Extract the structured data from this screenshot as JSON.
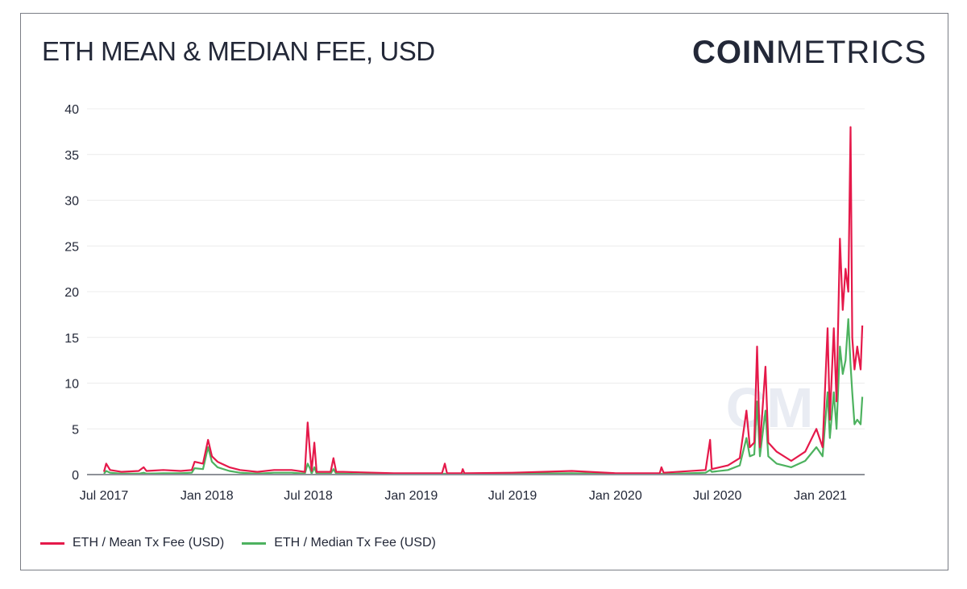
{
  "title": "ETH MEAN & MEDIAN FEE, USD",
  "logo": {
    "bold": "COIN",
    "light": "METRICS"
  },
  "chart_data": {
    "type": "line",
    "title": "ETH MEAN & MEDIAN FEE, USD",
    "xlabel": "",
    "ylabel": "",
    "ylim": [
      0,
      40
    ],
    "yticks": [
      "0",
      "5",
      "10",
      "15",
      "20",
      "25",
      "30",
      "35",
      "40"
    ],
    "xticks": [
      {
        "date": "2017-07-01",
        "label": "Jul 2017"
      },
      {
        "date": "2018-01-01",
        "label": "Jan 2018"
      },
      {
        "date": "2018-07-01",
        "label": "Jul 2018"
      },
      {
        "date": "2019-01-01",
        "label": "Jan 2019"
      },
      {
        "date": "2019-07-01",
        "label": "Jul 2019"
      },
      {
        "date": "2020-01-01",
        "label": "Jan 2020"
      },
      {
        "date": "2020-07-01",
        "label": "Jul 2020"
      },
      {
        "date": "2021-01-01",
        "label": "Jan 2021"
      }
    ],
    "xlim": [
      "2017-07-01",
      "2021-03-17"
    ],
    "grid": true,
    "legend_position": "bottom-left",
    "x": [
      "2017-07-01",
      "2017-07-05",
      "2017-07-12",
      "2017-08-01",
      "2017-09-01",
      "2017-09-10",
      "2017-09-15",
      "2017-10-15",
      "2017-11-15",
      "2017-12-05",
      "2017-12-10",
      "2017-12-25",
      "2018-01-03",
      "2018-01-10",
      "2018-01-20",
      "2018-02-10",
      "2018-03-01",
      "2018-04-01",
      "2018-05-01",
      "2018-06-01",
      "2018-06-25",
      "2018-06-30",
      "2018-07-04",
      "2018-07-07",
      "2018-07-12",
      "2018-07-16",
      "2018-08-10",
      "2018-08-15",
      "2018-08-20",
      "2018-09-01",
      "2018-10-01",
      "2018-12-01",
      "2019-02-25",
      "2019-03-02",
      "2019-03-06",
      "2019-04-01",
      "2019-04-03",
      "2019-04-06",
      "2019-07-01",
      "2019-10-15",
      "2020-01-01",
      "2020-03-20",
      "2020-03-23",
      "2020-03-27",
      "2020-06-10",
      "2020-06-18",
      "2020-06-21",
      "2020-07-20",
      "2020-08-10",
      "2020-08-22",
      "2020-08-28",
      "2020-09-05",
      "2020-09-10",
      "2020-09-15",
      "2020-09-25",
      "2020-09-30",
      "2020-10-15",
      "2020-11-10",
      "2020-12-05",
      "2020-12-25",
      "2021-01-05",
      "2021-01-14",
      "2021-01-18",
      "2021-01-25",
      "2021-01-30",
      "2021-02-05",
      "2021-02-10",
      "2021-02-15",
      "2021-02-20",
      "2021-02-24",
      "2021-02-27",
      "2021-03-03",
      "2021-03-08",
      "2021-03-14",
      "2021-03-17"
    ],
    "series": [
      {
        "name": "ETH / Mean Tx Fee (USD)",
        "color": "#e5194a",
        "values": [
          0.3,
          1.2,
          0.5,
          0.3,
          0.4,
          0.8,
          0.4,
          0.5,
          0.4,
          0.5,
          1.4,
          1.2,
          3.8,
          2.0,
          1.4,
          0.8,
          0.5,
          0.3,
          0.5,
          0.5,
          0.3,
          5.7,
          2.5,
          0.4,
          3.5,
          0.3,
          0.3,
          1.8,
          0.3,
          0.3,
          0.25,
          0.15,
          0.15,
          1.2,
          0.15,
          0.15,
          0.6,
          0.15,
          0.2,
          0.4,
          0.15,
          0.15,
          0.8,
          0.2,
          0.5,
          3.8,
          0.6,
          1.0,
          1.8,
          7.0,
          3.0,
          3.5,
          14.0,
          3.0,
          11.8,
          3.5,
          2.5,
          1.5,
          2.5,
          5.0,
          3.0,
          16.0,
          6.0,
          16.0,
          8.0,
          25.8,
          18.0,
          22.5,
          20.0,
          38.0,
          15.0,
          11.5,
          14.0,
          11.5,
          16.3
        ]
      },
      {
        "name": "ETH / Median Tx Fee (USD)",
        "color": "#4db25f",
        "values": [
          0.1,
          0.4,
          0.2,
          0.1,
          0.1,
          0.2,
          0.1,
          0.15,
          0.15,
          0.2,
          0.7,
          0.6,
          3.0,
          1.4,
          0.8,
          0.4,
          0.2,
          0.1,
          0.2,
          0.2,
          0.1,
          1.2,
          0.7,
          0.1,
          0.8,
          0.1,
          0.1,
          0.6,
          0.1,
          0.1,
          0.05,
          0.05,
          0.05,
          0.1,
          0.05,
          0.05,
          0.1,
          0.05,
          0.1,
          0.15,
          0.05,
          0.05,
          0.1,
          0.05,
          0.2,
          0.5,
          0.3,
          0.5,
          1.0,
          4.0,
          2.0,
          2.2,
          8.0,
          2.0,
          7.0,
          2.0,
          1.2,
          0.8,
          1.5,
          3.0,
          2.0,
          9.0,
          4.0,
          9.0,
          5.0,
          14.0,
          11.0,
          12.5,
          17.0,
          12.0,
          9.0,
          5.5,
          6.0,
          5.5,
          8.5
        ]
      }
    ]
  }
}
